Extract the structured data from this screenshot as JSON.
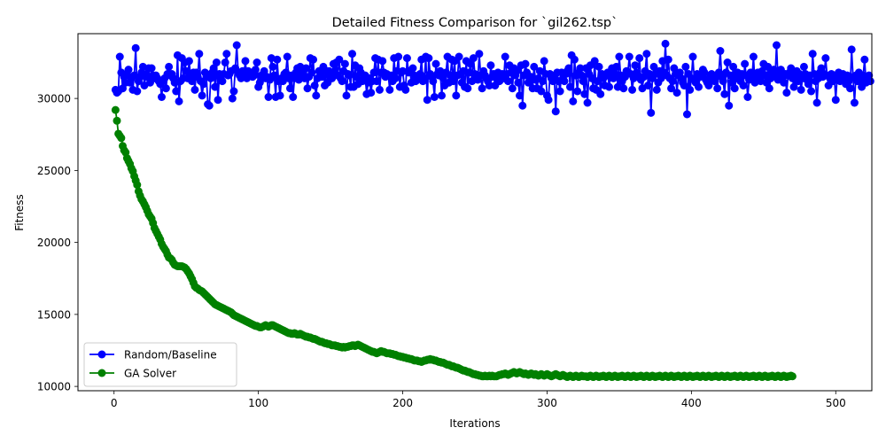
{
  "chart_data": {
    "type": "line",
    "title": "Detailed Fitness Comparison for `gil262.tsp`",
    "xlabel": "Iterations",
    "ylabel": "Fitness",
    "xlim": [
      -25,
      525
    ],
    "ylim": [
      9700,
      34500
    ],
    "xticks": [
      0,
      100,
      200,
      300,
      400,
      500
    ],
    "yticks": [
      10000,
      15000,
      20000,
      25000,
      30000
    ],
    "grid": false,
    "legend_position": "lower-left",
    "series": [
      {
        "name": "Random/Baseline",
        "color": "#0000ff",
        "x_start": 1,
        "x_step": 1,
        "values": [
          30600,
          30400,
          30500,
          32900,
          31800,
          30700,
          31500,
          31100,
          31700,
          32000,
          31100,
          31400,
          30600,
          31600,
          33500,
          30500,
          31200,
          31500,
          31800,
          32200,
          30900,
          31700,
          31500,
          32100,
          31100,
          32100,
          31600,
          31400,
          31600,
          31400,
          31200,
          31000,
          30100,
          31200,
          31400,
          30700,
          31700,
          32200,
          31600,
          31700,
          31400,
          31100,
          30500,
          33000,
          29800,
          31200,
          32800,
          31400,
          32500,
          31900,
          31400,
          32600,
          31600,
          31200,
          31800,
          30600,
          31800,
          31500,
          33100,
          31200,
          30200,
          31000,
          31800,
          31500,
          29600,
          29500,
          31400,
          31800,
          32100,
          30800,
          32500,
          29900,
          31700,
          31300,
          31200,
          31700,
          32500,
          33100,
          31600,
          31700,
          31900,
          30000,
          30500,
          32100,
          33700,
          31800,
          31600,
          31400,
          31900,
          31700,
          32600,
          31400,
          31900,
          31700,
          31700,
          31500,
          31600,
          32000,
          32500,
          30800,
          31100,
          31600,
          31400,
          31900,
          31400,
          31500,
          30100,
          31300,
          32800,
          32200,
          31600,
          30100,
          32700,
          31200,
          30200,
          31400,
          31200,
          31700,
          31800,
          32900,
          31400,
          30700,
          31600,
          30100,
          31400,
          31800,
          32100,
          31300,
          32200,
          31600,
          31800,
          31400,
          32100,
          30700,
          31500,
          32800,
          31800,
          32700,
          30900,
          30200,
          31400,
          31900,
          31600,
          31500,
          32200,
          30900,
          31900,
          31100,
          31900,
          31600,
          31400,
          32400,
          31800,
          32500,
          31600,
          32700,
          31400,
          31200,
          31900,
          32400,
          30200,
          31700,
          31600,
          30800,
          33100,
          30800,
          32300,
          31500,
          31000,
          32100,
          31800,
          31200,
          31400,
          31600,
          30300,
          31100,
          31400,
          30400,
          31200,
          31800,
          32800,
          31200,
          32700,
          30600,
          31800,
          32600,
          31800,
          31500,
          31700,
          31600,
          30600,
          31600,
          31200,
          32800,
          31400,
          31900,
          32900,
          30800,
          31800,
          31900,
          30900,
          30600,
          32800,
          31800,
          31900,
          31100,
          32100,
          31600,
          31200,
          31400,
          31500,
          31700,
          32700,
          31200,
          31400,
          32900,
          29900,
          32800,
          31700,
          31500,
          31200,
          30100,
          32400,
          31700,
          31600,
          31900,
          30200,
          31400,
          30900,
          31800,
          32900,
          31100,
          31600,
          32700,
          31200,
          32600,
          30200,
          31600,
          32900,
          31700,
          31100,
          31900,
          30800,
          32600,
          30700,
          31800,
          32400,
          31200,
          32800,
          31700,
          31500,
          31300,
          33100,
          31600,
          30700,
          31900,
          31600,
          31400,
          31200,
          30900,
          32300,
          31500,
          31700,
          30900,
          31400,
          31800,
          31200,
          31600,
          31700,
          31400,
          32900,
          31700,
          31200,
          32300,
          31800,
          30700,
          32100,
          31600,
          31900,
          31100,
          30200,
          32300,
          29500,
          31600,
          32400,
          31800,
          31100,
          31300,
          31500,
          30700,
          32200,
          31300,
          30700,
          31400,
          31900,
          30500,
          31200,
          32600,
          31700,
          30200,
          29900,
          31700,
          31400,
          31200,
          31600,
          29100,
          31800,
          31200,
          30500,
          31800,
          31400,
          31200,
          31700,
          31900,
          32100,
          30800,
          33000,
          29800,
          32700,
          31600,
          30500,
          31800,
          32100,
          31600,
          31200,
          30300,
          32100,
          29700,
          31700,
          32300,
          31400,
          30700,
          32600,
          30600,
          31200,
          32200,
          30300,
          31700,
          31400,
          30900,
          31600,
          31800,
          30800,
          31500,
          32100,
          31400,
          31700,
          32200,
          30800,
          32900,
          31600,
          31200,
          30700,
          31500,
          31900,
          31800,
          32900,
          31700,
          30600,
          31400,
          32300,
          31800,
          31600,
          32800,
          31300,
          30700,
          31500,
          31900,
          33100,
          30900,
          31700,
          29000,
          31400,
          32200,
          31700,
          30600,
          31100,
          31900,
          31400,
          32600,
          31800,
          33800,
          31600,
          32700,
          31400,
          30700,
          31200,
          32100,
          31700,
          30400,
          31600,
          31800,
          31400,
          31100,
          30900,
          32200,
          28900,
          31700,
          30600,
          31400,
          32900,
          31300,
          31100,
          31700,
          30800,
          31500,
          31600,
          32000,
          31800,
          31300,
          31100,
          30900,
          31500,
          31700,
          31400,
          31200,
          31600,
          30700,
          31800,
          33300,
          31500,
          31200,
          30300,
          31800,
          32500,
          29500,
          31600,
          31100,
          32200,
          30700,
          31400,
          31800,
          31500,
          31200,
          31700,
          30900,
          32400,
          31600,
          30100,
          31300,
          31800,
          31400,
          32900,
          31100,
          31700,
          31800,
          31400,
          31200,
          31900,
          32400,
          31600,
          31100,
          32200,
          30700,
          31400,
          31800,
          32000,
          31600,
          33700,
          31300,
          31800,
          32000,
          31500,
          31100,
          31700,
          30400,
          31600,
          31800,
          32100,
          31400,
          30800,
          31600,
          31900,
          31200,
          31700,
          30600,
          31400,
          32200,
          31700,
          31300,
          31000,
          31600,
          30500,
          33100,
          31700,
          31200,
          29700,
          31400,
          31800,
          32100,
          31500,
          31700,
          32800,
          31600,
          30900,
          31400,
          31700,
          31200,
          31600,
          29900,
          31500,
          31800,
          31200,
          31500,
          31700,
          31400,
          31000,
          31600,
          31200,
          30700,
          33400,
          31500,
          29700,
          31600,
          31200,
          31800,
          31400,
          30800,
          31600,
          32700,
          31100,
          31300,
          31600,
          31200
        ]
      },
      {
        "name": "GA Solver",
        "color": "#008000",
        "x_start": 1,
        "x_step": 1,
        "values": [
          29200,
          28450,
          27550,
          27400,
          27250,
          26700,
          26400,
          26250,
          25850,
          25650,
          25450,
          25150,
          24950,
          24600,
          24300,
          24000,
          23550,
          23250,
          23000,
          22850,
          22650,
          22450,
          22200,
          21950,
          21800,
          21650,
          21350,
          21000,
          20800,
          20600,
          20400,
          20200,
          19900,
          19700,
          19550,
          19400,
          19150,
          18950,
          18900,
          18800,
          18600,
          18450,
          18400,
          18350,
          18350,
          18350,
          18350,
          18300,
          18250,
          18150,
          18000,
          17850,
          17650,
          17450,
          17200,
          16950,
          16850,
          16800,
          16700,
          16650,
          16600,
          16500,
          16400,
          16300,
          16200,
          16100,
          16000,
          15900,
          15800,
          15700,
          15650,
          15600,
          15550,
          15500,
          15450,
          15400,
          15350,
          15300,
          15250,
          15200,
          15150,
          15050,
          14950,
          14900,
          14850,
          14800,
          14750,
          14700,
          14650,
          14600,
          14550,
          14500,
          14450,
          14400,
          14350,
          14300,
          14250,
          14200,
          14200,
          14150,
          14100,
          14100,
          14150,
          14200,
          14250,
          14200,
          14150,
          14200,
          14250,
          14250,
          14200,
          14150,
          14100,
          14050,
          14000,
          13950,
          13900,
          13850,
          13800,
          13750,
          13700,
          13700,
          13650,
          13650,
          13700,
          13650,
          13600,
          13600,
          13650,
          13600,
          13550,
          13500,
          13450,
          13450,
          13400,
          13400,
          13350,
          13300,
          13300,
          13250,
          13200,
          13150,
          13100,
          13100,
          13050,
          13000,
          13000,
          12950,
          12950,
          12900,
          12850,
          12850,
          12850,
          12800,
          12800,
          12750,
          12750,
          12700,
          12750,
          12700,
          12750,
          12750,
          12800,
          12800,
          12850,
          12850,
          12800,
          12850,
          12900,
          12850,
          12800,
          12750,
          12700,
          12650,
          12600,
          12550,
          12500,
          12450,
          12400,
          12400,
          12350,
          12300,
          12350,
          12400,
          12450,
          12400,
          12400,
          12350,
          12300,
          12300,
          12300,
          12250,
          12250,
          12200,
          12200,
          12150,
          12100,
          12100,
          12050,
          12050,
          12000,
          12000,
          11950,
          11950,
          11900,
          11900,
          11850,
          11800,
          11800,
          11800,
          11750,
          11750,
          11700,
          11750,
          11800,
          11800,
          11850,
          11850,
          11900,
          11850,
          11850,
          11800,
          11800,
          11750,
          11700,
          11700,
          11650,
          11650,
          11600,
          11550,
          11500,
          11500,
          11450,
          11400,
          11400,
          11350,
          11300,
          11300,
          11250,
          11200,
          11150,
          11100,
          11100,
          11050,
          11000,
          11000,
          10950,
          10900,
          10850,
          10850,
          10800,
          10800,
          10750,
          10750,
          10700,
          10700,
          10750,
          10700,
          10700,
          10750,
          10700,
          10750,
          10700,
          10700,
          10700,
          10750,
          10800,
          10800,
          10850,
          10850,
          10900,
          10850,
          10800,
          10850,
          10900,
          10950,
          11000,
          10950,
          10900,
          10950,
          11000,
          10950,
          10900,
          10850,
          10900,
          10850,
          10800,
          10850,
          10900,
          10850,
          10800,
          10850,
          10800,
          10750,
          10800,
          10850,
          10800,
          10750,
          10800,
          10850,
          10800,
          10750,
          10700,
          10750,
          10800,
          10850,
          10800,
          10750,
          10700,
          10750,
          10800,
          10750,
          10700,
          10650,
          10700,
          10750,
          10700,
          10650,
          10700,
          10750,
          10700,
          10650,
          10700,
          10750,
          10700,
          10700,
          10700,
          10650,
          10700,
          10750,
          10700,
          10650,
          10700,
          10750,
          10700,
          10650,
          10700,
          10700,
          10750,
          10700,
          10650,
          10700,
          10750,
          10700,
          10650,
          10700,
          10750,
          10700,
          10650,
          10700,
          10700,
          10750,
          10700,
          10650,
          10700,
          10750,
          10700,
          10650,
          10700,
          10750,
          10700,
          10650,
          10700,
          10700,
          10750,
          10700,
          10650,
          10700,
          10750,
          10700,
          10650,
          10700,
          10750,
          10700,
          10650,
          10700,
          10700,
          10750,
          10700,
          10650,
          10700,
          10750,
          10700,
          10650,
          10700,
          10750,
          10700,
          10650,
          10700,
          10700,
          10750,
          10700,
          10650,
          10700,
          10750,
          10700,
          10650,
          10700,
          10750,
          10700,
          10650,
          10700,
          10700,
          10750,
          10700,
          10650,
          10700,
          10750,
          10700,
          10650,
          10700,
          10750,
          10700,
          10650,
          10700,
          10700,
          10750,
          10700,
          10650,
          10700,
          10750,
          10700,
          10650,
          10700,
          10750,
          10700,
          10650,
          10700,
          10700,
          10750,
          10700,
          10650,
          10700,
          10750,
          10700,
          10650,
          10700,
          10750,
          10700,
          10650,
          10700,
          10700,
          10750,
          10700,
          10650,
          10700,
          10750,
          10700,
          10650,
          10700,
          10750,
          10700,
          10650,
          10700,
          10700,
          10750,
          10700,
          10650,
          10700,
          10750,
          10700,
          10650,
          10700,
          10750,
          10700,
          10650,
          10700,
          10700,
          10750,
          10700
        ]
      }
    ]
  }
}
